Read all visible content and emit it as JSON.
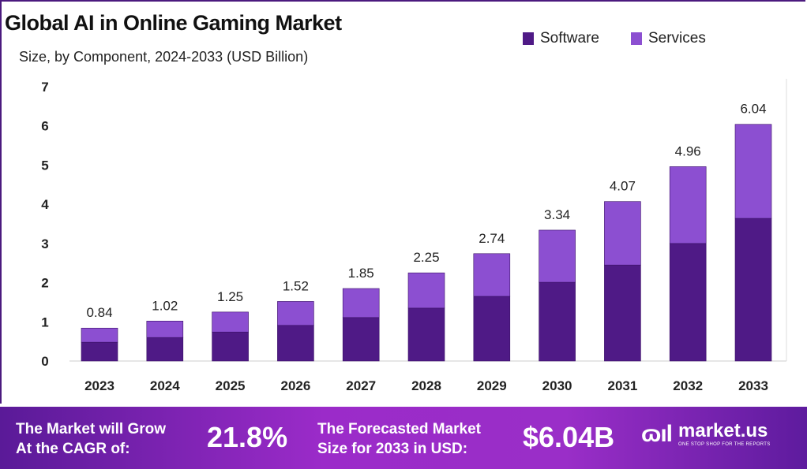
{
  "chart_data": {
    "type": "bar",
    "stacked": true,
    "title": "Global AI in Online Gaming Market",
    "subtitle": "Size, by Component, 2024-2033 (USD Billion)",
    "categories": [
      "2023",
      "2024",
      "2025",
      "2026",
      "2027",
      "2028",
      "2029",
      "2030",
      "2031",
      "2032",
      "2033"
    ],
    "series": [
      {
        "name": "Software",
        "color": "#4f1a86",
        "values": [
          0.48,
          0.6,
          0.74,
          0.91,
          1.11,
          1.35,
          1.65,
          2.01,
          2.45,
          3.0,
          3.64
        ]
      },
      {
        "name": "Services",
        "color": "#8c4fd1",
        "values": [
          0.36,
          0.42,
          0.51,
          0.61,
          0.74,
          0.9,
          1.09,
          1.33,
          1.62,
          1.96,
          2.4
        ]
      }
    ],
    "totals": [
      "0.84",
      "1.02",
      "1.25",
      "1.52",
      "1.85",
      "2.25",
      "2.74",
      "3.34",
      "4.07",
      "4.96",
      "6.04"
    ],
    "yticks": [
      0,
      1,
      2,
      3,
      4,
      5,
      6,
      7
    ],
    "ylim": [
      0,
      7
    ],
    "grid": false,
    "legend_position": "top-right"
  },
  "banner": {
    "cagr_label_1": "The Market will Grow",
    "cagr_label_2": "At the CAGR of:",
    "cagr_value": "21.8%",
    "forecast_label_1": "The Forecasted Market",
    "forecast_label_2": "Size for 2033 in USD:",
    "forecast_value": "$6.04B",
    "logo_name": "market.us",
    "logo_tagline": "ONE STOP SHOP FOR THE REPORTS"
  }
}
